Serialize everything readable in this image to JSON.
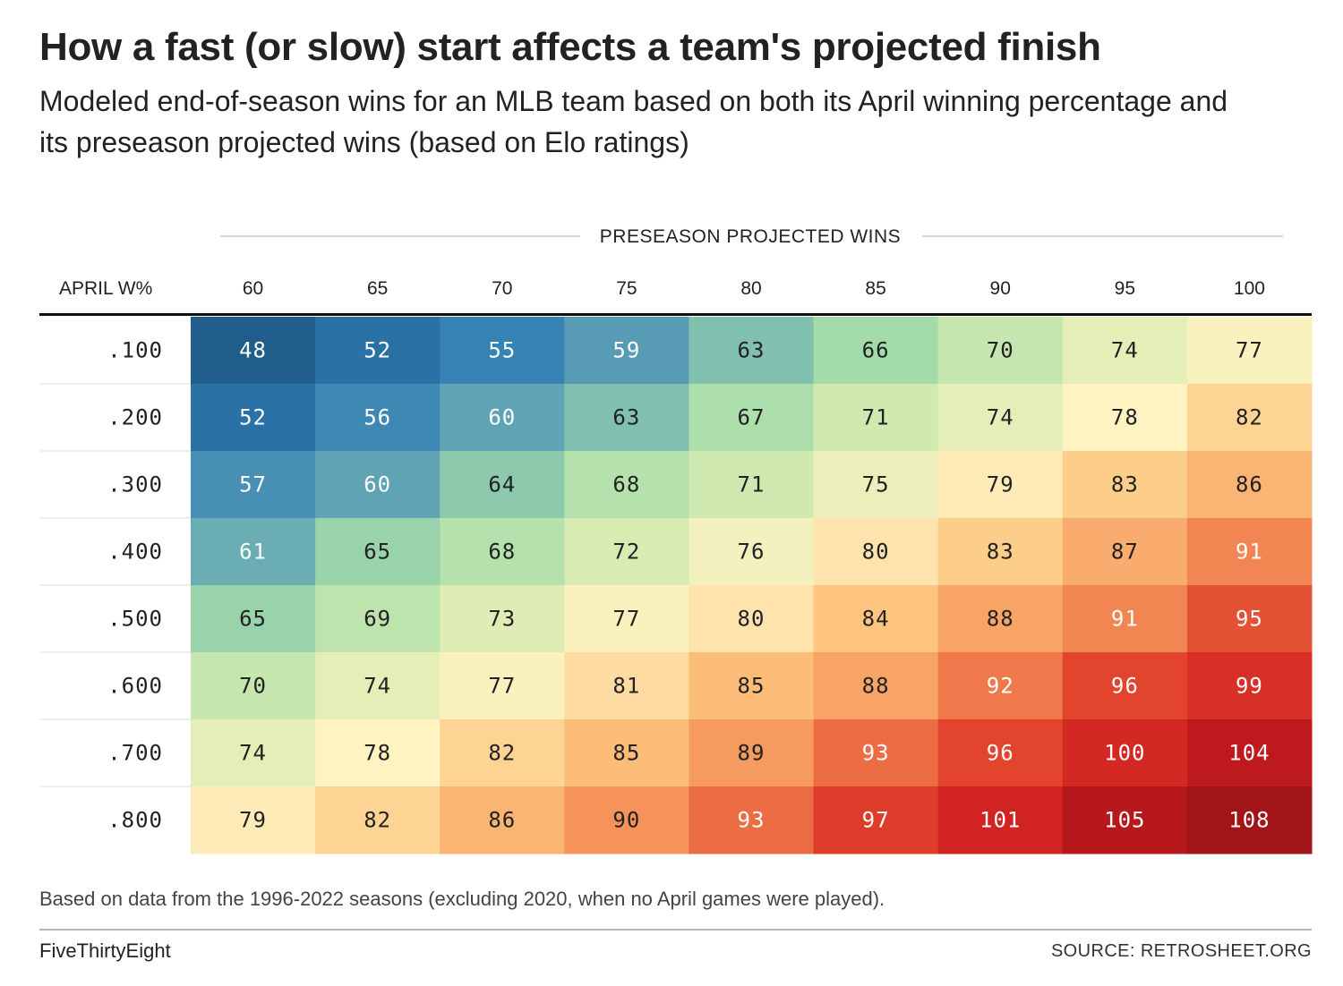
{
  "chart_data": {
    "type": "heatmap",
    "title": "How a fast (or slow) start affects a team's projected finish",
    "subtitle": "Modeled end-of-season wins for an MLB team based on both its April winning percentage and its preseason projected wins (based on Elo ratings)",
    "x_title": "PRESEASON PROJECTED WINS",
    "row_header": "APRIL W%",
    "x": [
      "60",
      "65",
      "70",
      "75",
      "80",
      "85",
      "90",
      "95",
      "100"
    ],
    "y": [
      ".100",
      ".200",
      ".300",
      ".400",
      ".500",
      ".600",
      ".700",
      ".800"
    ],
    "values": [
      [
        48,
        52,
        55,
        59,
        63,
        66,
        70,
        74,
        77
      ],
      [
        52,
        56,
        60,
        63,
        67,
        71,
        74,
        78,
        82
      ],
      [
        57,
        60,
        64,
        68,
        71,
        75,
        79,
        83,
        86
      ],
      [
        61,
        65,
        68,
        72,
        76,
        80,
        83,
        87,
        91
      ],
      [
        65,
        69,
        73,
        77,
        80,
        84,
        88,
        91,
        95
      ],
      [
        70,
        74,
        77,
        81,
        85,
        88,
        92,
        96,
        99
      ],
      [
        74,
        78,
        82,
        85,
        89,
        93,
        96,
        100,
        104
      ],
      [
        79,
        82,
        86,
        90,
        93,
        97,
        101,
        105,
        108
      ]
    ],
    "color_scale": {
      "min": 48,
      "max": 108,
      "stops": [
        "#215d8a",
        "#2e7bb4",
        "#5fa3b4",
        "#a3dcaa",
        "#d8ebb1",
        "#fff3c2",
        "#fdc57f",
        "#f5935a",
        "#e2442e",
        "#cd1c1e",
        "#a11418"
      ]
    }
  },
  "note": "Based on data from the 1996-2022 seasons (excluding 2020, when no April games were played).",
  "brand": "FiveThirtyEight",
  "source": "SOURCE: RETROSHEET.ORG"
}
